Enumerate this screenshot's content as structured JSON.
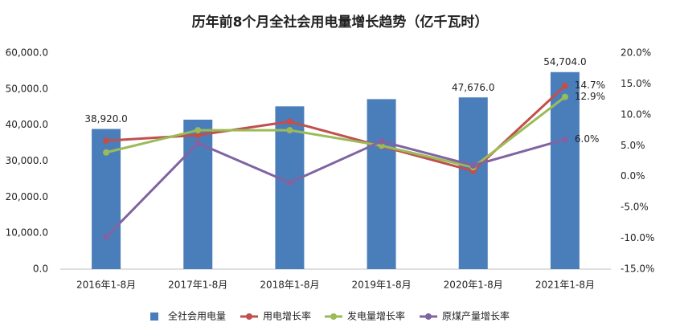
{
  "chart_data": {
    "type": "bar_line",
    "title": "历年前8个月全社会用电量增长趋势（亿千瓦时）",
    "categories": [
      "2016年1-8月",
      "2017年1-8月",
      "2018年1-8月",
      "2019年1-8月",
      "2020年1-8月",
      "2021年1-8月"
    ],
    "series": [
      {
        "name": "全社会用电量",
        "type": "bar",
        "color": "#4a7ebb",
        "axis": "y",
        "values": [
          38920,
          41500,
          45200,
          47200,
          47676,
          54704
        ],
        "value_labels": [
          "38,920.0",
          null,
          null,
          null,
          "47,676.0",
          "54,704.0"
        ]
      },
      {
        "name": "用电增长率",
        "type": "line",
        "color": "#c0504d",
        "axis": "y2",
        "values": [
          5.8,
          6.7,
          8.9,
          4.9,
          0.9,
          14.7
        ],
        "value_labels": [
          null,
          null,
          null,
          null,
          null,
          "14.7%"
        ]
      },
      {
        "name": "发电量增长率",
        "type": "line",
        "color": "#9bbb59",
        "axis": "y2",
        "values": [
          3.9,
          7.5,
          7.5,
          5.0,
          1.5,
          12.9
        ],
        "value_labels": [
          null,
          null,
          null,
          null,
          null,
          "12.9%"
        ]
      },
      {
        "name": "原煤产量增长率",
        "type": "line",
        "color": "#8064a2",
        "axis": "y2",
        "values": [
          -9.8,
          5.4,
          -1.0,
          5.7,
          1.8,
          6.0
        ],
        "value_labels": [
          null,
          null,
          null,
          null,
          null,
          "6.0%"
        ]
      }
    ],
    "ylim": [
      0,
      60000
    ],
    "yticks": [
      {
        "value": 0,
        "label": "0.0"
      },
      {
        "value": 10000,
        "label": "10,000.0"
      },
      {
        "value": 20000,
        "label": "20,000.0"
      },
      {
        "value": 30000,
        "label": "30,000.0"
      },
      {
        "value": 40000,
        "label": "40,000.0"
      },
      {
        "value": 50000,
        "label": "50,000.0"
      },
      {
        "value": 60000,
        "label": "60,000.0"
      }
    ],
    "y2lim": [
      -15,
      20
    ],
    "y2ticks": [
      {
        "value": -15,
        "label": "-15.0%"
      },
      {
        "value": -10,
        "label": "-10.0%"
      },
      {
        "value": -5,
        "label": "-5.0%"
      },
      {
        "value": 0,
        "label": "0.0%"
      },
      {
        "value": 5,
        "label": "5.0%"
      },
      {
        "value": 10,
        "label": "10.0%"
      },
      {
        "value": 15,
        "label": "15.0%"
      },
      {
        "value": 20,
        "label": "20.0%"
      }
    ],
    "legend": "bottom"
  }
}
